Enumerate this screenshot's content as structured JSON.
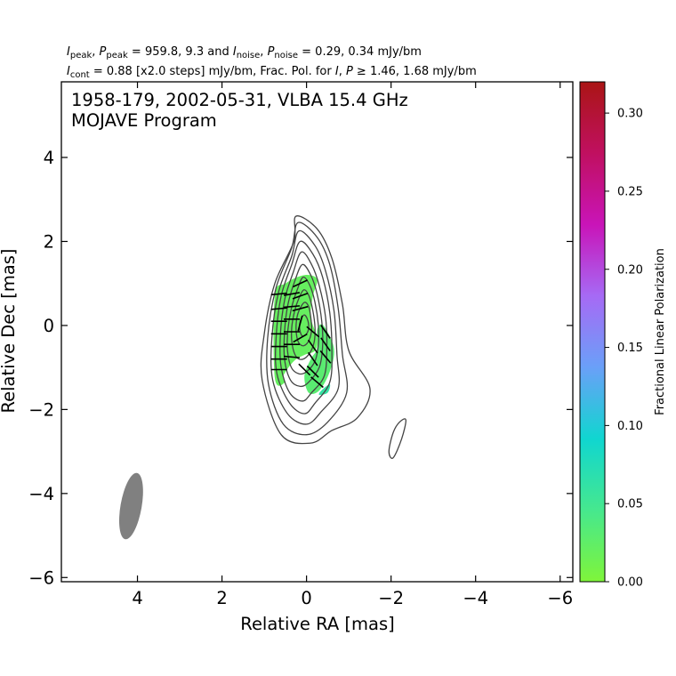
{
  "header": {
    "line1": "I_peak, P_peak = 959.8, 9.3 and I_noise, P_noise = 0.29, 0.34 mJy/bm",
    "line1_parts": {
      "i": "I",
      "peak": "peak",
      "sep1": ", ",
      "p": "P",
      "peak2": "peak",
      "mid": " = 959.8, 9.3 and ",
      "i2": "I",
      "noise": "noise",
      "sep2": ", ",
      "p2": "P",
      "noise2": "noise",
      "tail": " = 0.29, 0.34 mJy/bm"
    },
    "line2": "I_cont = 0.88 [x2.0 steps] mJy/bm, Frac. Pol. for I, P ≥ 1.46, 1.68 mJy/bm",
    "line2_parts": {
      "i": "I",
      "cont": "cont",
      "mid": " = 0.88 [x2.0 steps] mJy/bm, Frac. Pol. for ",
      "i2": "I",
      "sep": ", ",
      "p": "P",
      "tail": " ≥  1.46, 1.68 mJy/bm"
    }
  },
  "plot_title": {
    "line1": "1958-179, 2002-05-31, VLBA 15.4 GHz",
    "line2": "MOJAVE Program"
  },
  "axes": {
    "xlabel": "Relative RA [mas]",
    "ylabel": "Relative Dec [mas]",
    "x_ticks": [
      "4",
      "2",
      "0",
      "−2",
      "−4",
      "−6"
    ],
    "y_ticks": [
      "4",
      "2",
      "0",
      "−2",
      "−4",
      "−6"
    ]
  },
  "colorbar": {
    "label": "Fractional Linear Polarization",
    "ticks": [
      "0.00",
      "0.05",
      "0.10",
      "0.15",
      "0.20",
      "0.25",
      "0.30"
    ],
    "range": [
      0,
      0.32
    ],
    "colors": [
      "#7ff53a",
      "#46e88e",
      "#10d6d0",
      "#6aa0f8",
      "#a66af5",
      "#c914b8",
      "#c01060",
      "#aa1515"
    ]
  },
  "chart_data": {
    "type": "contour",
    "title": "1958-179, 2002-05-31, VLBA 15.4 GHz",
    "subtitle": "MOJAVE Program",
    "xlabel": "Relative RA [mas]",
    "ylabel": "Relative Dec [mas]",
    "xlim": [
      5.8,
      -6.3
    ],
    "ylim": [
      -6.1,
      5.8
    ],
    "x_inverted": true,
    "grid": false,
    "contours": [
      {
        "level": 1,
        "points": [
          [
            0.25,
            2.6
          ],
          [
            -0.25,
            2.3
          ],
          [
            -0.6,
            1.6
          ],
          [
            -0.85,
            0.5
          ],
          [
            -1.0,
            -0.6
          ],
          [
            -1.5,
            -1.5
          ],
          [
            -1.2,
            -2.2
          ],
          [
            -0.6,
            -2.5
          ],
          [
            -0.1,
            -2.8
          ],
          [
            0.6,
            -2.6
          ],
          [
            1.05,
            -1.3
          ],
          [
            1.0,
            -0.2
          ],
          [
            0.75,
            1.0
          ],
          [
            0.3,
            2.0
          ],
          [
            0.25,
            2.6
          ]
        ]
      },
      {
        "level": 2,
        "points": [
          [
            0.2,
            2.45
          ],
          [
            -0.25,
            2.1
          ],
          [
            -0.55,
            1.45
          ],
          [
            -0.75,
            0.4
          ],
          [
            -0.85,
            -0.7
          ],
          [
            -0.95,
            -1.6
          ],
          [
            -0.5,
            -2.3
          ],
          [
            0.0,
            -2.6
          ],
          [
            0.55,
            -2.35
          ],
          [
            0.9,
            -1.4
          ],
          [
            0.92,
            -0.3
          ],
          [
            0.72,
            0.9
          ],
          [
            0.35,
            1.85
          ],
          [
            0.2,
            2.45
          ]
        ]
      },
      {
        "level": 3,
        "points": [
          [
            0.18,
            2.25
          ],
          [
            -0.2,
            1.9
          ],
          [
            -0.45,
            1.3
          ],
          [
            -0.65,
            0.35
          ],
          [
            -0.72,
            -0.7
          ],
          [
            -0.75,
            -1.5
          ],
          [
            -0.35,
            -2.05
          ],
          [
            0.0,
            -2.35
          ],
          [
            0.45,
            -2.1
          ],
          [
            0.8,
            -1.3
          ],
          [
            0.82,
            -0.3
          ],
          [
            0.66,
            0.8
          ],
          [
            0.35,
            1.65
          ],
          [
            0.18,
            2.25
          ]
        ]
      },
      {
        "level": 4,
        "points": [
          [
            0.15,
            2.0
          ],
          [
            -0.15,
            1.7
          ],
          [
            -0.38,
            1.15
          ],
          [
            -0.55,
            0.3
          ],
          [
            -0.6,
            -0.6
          ],
          [
            -0.55,
            -1.35
          ],
          [
            -0.2,
            -1.85
          ],
          [
            0.05,
            -2.1
          ],
          [
            0.4,
            -1.85
          ],
          [
            0.7,
            -1.15
          ],
          [
            0.72,
            -0.3
          ],
          [
            0.6,
            0.7
          ],
          [
            0.35,
            1.45
          ],
          [
            0.15,
            2.0
          ]
        ]
      },
      {
        "level": 5,
        "points": [
          [
            0.12,
            1.75
          ],
          [
            -0.12,
            1.45
          ],
          [
            -0.3,
            0.95
          ],
          [
            -0.45,
            0.2
          ],
          [
            -0.48,
            -0.55
          ],
          [
            -0.42,
            -1.2
          ],
          [
            -0.12,
            -1.6
          ],
          [
            0.1,
            -1.8
          ],
          [
            0.4,
            -1.6
          ],
          [
            0.6,
            -1.0
          ],
          [
            0.62,
            -0.25
          ],
          [
            0.52,
            0.6
          ],
          [
            0.32,
            1.25
          ],
          [
            0.12,
            1.75
          ]
        ]
      },
      {
        "level": 6,
        "points": [
          [
            0.1,
            1.45
          ],
          [
            -0.1,
            1.2
          ],
          [
            -0.25,
            0.75
          ],
          [
            -0.36,
            0.1
          ],
          [
            -0.38,
            -0.5
          ],
          [
            -0.3,
            -1.0
          ],
          [
            -0.05,
            -1.35
          ],
          [
            0.15,
            -1.45
          ],
          [
            0.38,
            -1.3
          ],
          [
            0.52,
            -0.8
          ],
          [
            0.52,
            -0.15
          ],
          [
            0.44,
            0.5
          ],
          [
            0.28,
            1.05
          ],
          [
            0.1,
            1.45
          ]
        ]
      },
      {
        "level": 7,
        "points": [
          [
            0.08,
            1.15
          ],
          [
            -0.08,
            0.95
          ],
          [
            -0.2,
            0.55
          ],
          [
            -0.28,
            0.0
          ],
          [
            -0.28,
            -0.45
          ],
          [
            -0.2,
            -0.85
          ],
          [
            0.0,
            -1.1
          ],
          [
            0.18,
            -1.15
          ],
          [
            0.36,
            -1.0
          ],
          [
            0.45,
            -0.6
          ],
          [
            0.44,
            -0.1
          ],
          [
            0.36,
            0.4
          ],
          [
            0.22,
            0.85
          ],
          [
            0.08,
            1.15
          ]
        ]
      },
      {
        "level": 8,
        "points": [
          [
            0.06,
            0.85
          ],
          [
            -0.06,
            0.7
          ],
          [
            -0.15,
            0.35
          ],
          [
            -0.2,
            -0.05
          ],
          [
            -0.18,
            -0.4
          ],
          [
            -0.08,
            -0.65
          ],
          [
            0.08,
            -0.8
          ],
          [
            0.24,
            -0.75
          ],
          [
            0.34,
            -0.45
          ],
          [
            0.35,
            -0.05
          ],
          [
            0.28,
            0.35
          ],
          [
            0.18,
            0.65
          ],
          [
            0.06,
            0.85
          ]
        ]
      },
      {
        "level": 9,
        "points": [
          [
            0.05,
            0.55
          ],
          [
            -0.05,
            0.45
          ],
          [
            -0.1,
            0.2
          ],
          [
            -0.12,
            -0.1
          ],
          [
            -0.06,
            -0.35
          ],
          [
            0.06,
            -0.48
          ],
          [
            0.18,
            -0.42
          ],
          [
            0.24,
            -0.2
          ],
          [
            0.24,
            0.1
          ],
          [
            0.18,
            0.35
          ],
          [
            0.05,
            0.55
          ]
        ]
      },
      {
        "level": 10,
        "points": [
          [
            0.06,
            0.25
          ],
          [
            -0.02,
            0.15
          ],
          [
            -0.05,
            -0.05
          ],
          [
            0.0,
            -0.2
          ],
          [
            0.1,
            -0.25
          ],
          [
            0.16,
            -0.1
          ],
          [
            0.15,
            0.1
          ],
          [
            0.06,
            0.25
          ]
        ]
      },
      {
        "level": 1,
        "points": [
          [
            -2.35,
            -2.25
          ],
          [
            -2.25,
            -2.7
          ],
          [
            -2.05,
            -3.15
          ],
          [
            -1.95,
            -3.0
          ],
          [
            -2.05,
            -2.55
          ],
          [
            -2.2,
            -2.3
          ],
          [
            -2.35,
            -2.25
          ]
        ]
      }
    ],
    "polarization_regions": [
      {
        "points": [
          [
            0.05,
            1.2
          ],
          [
            -0.25,
            1.1
          ],
          [
            -0.15,
            0.7
          ],
          [
            -0.1,
            0.2
          ],
          [
            -0.25,
            -0.3
          ],
          [
            -0.2,
            -0.6
          ],
          [
            0.05,
            -0.7
          ],
          [
            0.3,
            -0.85
          ],
          [
            0.55,
            -1.2
          ],
          [
            0.5,
            -1.35
          ],
          [
            0.75,
            -1.25
          ],
          [
            0.75,
            0.7
          ],
          [
            0.5,
            1.0
          ],
          [
            0.05,
            1.2
          ]
        ],
        "fraction": 0.02
      },
      {
        "points": [
          [
            -0.4,
            0.0
          ],
          [
            -0.65,
            -0.55
          ],
          [
            -0.55,
            -1.1
          ],
          [
            -0.3,
            -1.55
          ],
          [
            -0.05,
            -1.6
          ],
          [
            0.05,
            -1.2
          ],
          [
            -0.1,
            -0.8
          ],
          [
            -0.25,
            -0.55
          ],
          [
            -0.25,
            -0.1
          ],
          [
            -0.4,
            0.0
          ]
        ],
        "fraction": 0.03
      },
      {
        "points": [
          [
            -0.55,
            -1.4
          ],
          [
            -0.35,
            -1.55
          ],
          [
            -0.3,
            -1.65
          ],
          [
            -0.5,
            -1.6
          ],
          [
            -0.55,
            -1.4
          ]
        ],
        "fraction": 0.06
      }
    ],
    "evpa_vectors": [
      {
        "x": 0.65,
        "y": 0.75,
        "angle": 5
      },
      {
        "x": 0.65,
        "y": 0.4,
        "angle": 5
      },
      {
        "x": 0.65,
        "y": 0.1,
        "angle": 0
      },
      {
        "x": 0.65,
        "y": -0.2,
        "angle": 0
      },
      {
        "x": 0.65,
        "y": -0.5,
        "angle": 0
      },
      {
        "x": 0.65,
        "y": -0.8,
        "angle": 0
      },
      {
        "x": 0.65,
        "y": -1.05,
        "angle": 0
      },
      {
        "x": 0.35,
        "y": 0.75,
        "angle": 10
      },
      {
        "x": 0.35,
        "y": 0.45,
        "angle": 5
      },
      {
        "x": 0.35,
        "y": 0.15,
        "angle": 0
      },
      {
        "x": 0.35,
        "y": -0.15,
        "angle": 0
      },
      {
        "x": 0.35,
        "y": -0.45,
        "angle": 0
      },
      {
        "x": 0.35,
        "y": -0.75,
        "angle": -5
      },
      {
        "x": 0.15,
        "y": 1.0,
        "angle": 25
      },
      {
        "x": 0.15,
        "y": 0.7,
        "angle": 20
      },
      {
        "x": 0.15,
        "y": 0.4,
        "angle": 15
      },
      {
        "x": 0.15,
        "y": 0.05,
        "angle": 75
      },
      {
        "x": 0.15,
        "y": -0.3,
        "angle": 30
      },
      {
        "x": -0.15,
        "y": -0.15,
        "angle": -40
      },
      {
        "x": -0.45,
        "y": -0.15,
        "angle": -55
      },
      {
        "x": -0.15,
        "y": -0.5,
        "angle": -55
      },
      {
        "x": -0.45,
        "y": -0.45,
        "angle": -55
      },
      {
        "x": -0.15,
        "y": -0.8,
        "angle": -55
      },
      {
        "x": -0.45,
        "y": -0.75,
        "angle": -50
      },
      {
        "x": -0.15,
        "y": -1.1,
        "angle": -45
      },
      {
        "x": 0.05,
        "y": -1.05,
        "angle": -45
      },
      {
        "x": -0.25,
        "y": -1.35,
        "angle": -40
      }
    ],
    "beam": {
      "x": 4.15,
      "y": -4.3,
      "major": 1.6,
      "minor": 0.5,
      "pa_deg": -10,
      "color": "#808080"
    }
  }
}
